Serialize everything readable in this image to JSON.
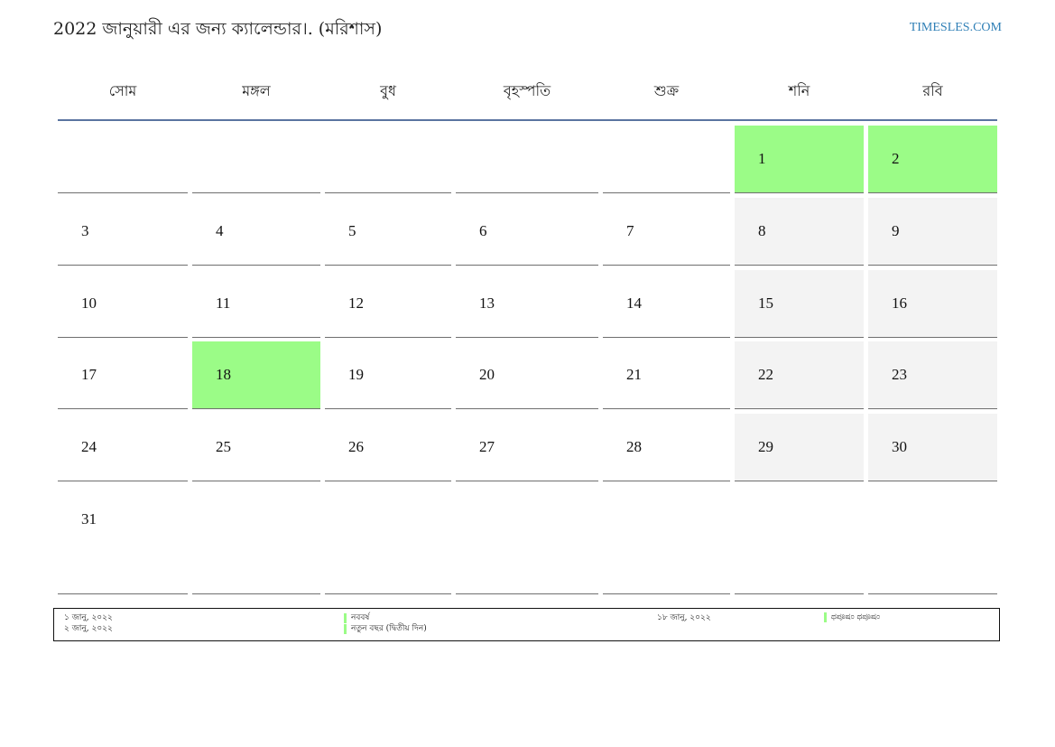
{
  "header": {
    "title": "2022 জানুয়ারী এর জন্য ক্যালেন্ডার।. (মরিশাস)",
    "brand": "TIMESLES.COM"
  },
  "calendar": {
    "weekdays": [
      "সোম",
      "মঙ্গল",
      "বুধ",
      "বৃহস্পতি",
      "শুক্র",
      "শনি",
      "রবি"
    ],
    "weeks": [
      [
        "",
        "",
        "",
        "",
        "",
        "1",
        "2"
      ],
      [
        "3",
        "4",
        "5",
        "6",
        "7",
        "8",
        "9"
      ],
      [
        "10",
        "11",
        "12",
        "13",
        "14",
        "15",
        "16"
      ],
      [
        "17",
        "18",
        "19",
        "20",
        "21",
        "22",
        "23"
      ],
      [
        "24",
        "25",
        "26",
        "27",
        "28",
        "29",
        "30"
      ],
      [
        "31",
        "",
        "",
        "",
        "",
        "",
        ""
      ]
    ],
    "holidays": [
      "1",
      "2",
      "18"
    ],
    "colors": {
      "holiday": "#9bfc87",
      "weekend": "#f3f3f3",
      "header_rule": "#5a74a0",
      "brand": "#2f7fb6"
    }
  },
  "legend": {
    "dates_left": [
      "১ জানু, ২০২২",
      "২ জানু, ২০২২"
    ],
    "names_left": [
      "নববর্ষ",
      "নতুন বছর (দ্বিতীয় দিন)"
    ],
    "date_right": "১৮ জানু, ২০২২",
    "name_right": "ಥಪೂಷಂ ಥಪೂಷಂ"
  }
}
